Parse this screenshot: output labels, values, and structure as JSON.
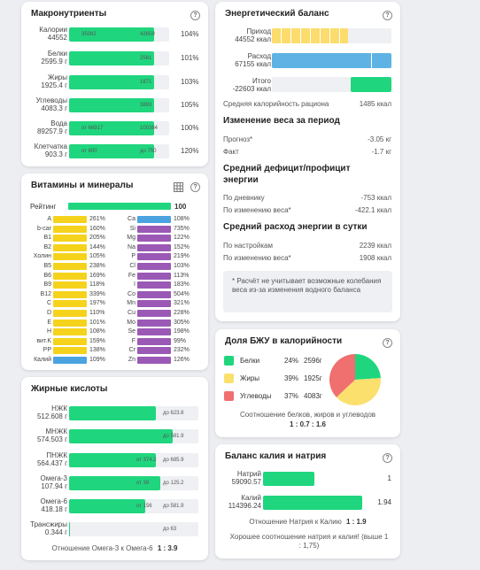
{
  "colors": {
    "green": "#1fd67e",
    "yellow": "#f5d31c",
    "blue": "#4ba3e0",
    "purple": "#9b59b6",
    "red": "#f06f6f",
    "pie_yellow": "#fbe06e"
  },
  "macro": {
    "title": "Макронутриенты",
    "help": "?",
    "rows": [
      {
        "name": "Калории",
        "value": "44552",
        "fill": 1.04,
        "in_left": "35082",
        "in_right": "42659",
        "pct": "104%"
      },
      {
        "name": "Белки",
        "value": "2595.9 г",
        "fill": 1.01,
        "in_left": "",
        "in_right": "2561",
        "pct": "101%"
      },
      {
        "name": "Жиры",
        "value": "1925.4 г",
        "fill": 1.03,
        "in_left": "",
        "in_right": "1871",
        "pct": "103%"
      },
      {
        "name": "Углеводы",
        "value": "4083.3 г",
        "fill": 1.05,
        "in_left": "",
        "in_right": "3893",
        "pct": "105%"
      },
      {
        "name": "Вода",
        "value": "89257.9 г",
        "fill": 1.0,
        "in_left": "от 66917",
        "in_right": "100384",
        "pct": "100%"
      },
      {
        "name": "Клетчатка",
        "value": "903.3 г",
        "fill": 1.2,
        "in_left": "от 600",
        "in_right": "до 750",
        "pct": "120%"
      }
    ]
  },
  "vitamins": {
    "title": "Витамины и минералы",
    "rating_label": "Рейтинг",
    "rating_value": "100",
    "left": [
      {
        "n": "A",
        "p": "261%",
        "c": "yellow"
      },
      {
        "n": "b-car",
        "p": "160%",
        "c": "yellow"
      },
      {
        "n": "B1",
        "p": "205%",
        "c": "yellow"
      },
      {
        "n": "B2",
        "p": "144%",
        "c": "yellow"
      },
      {
        "n": "Холин",
        "p": "105%",
        "c": "yellow"
      },
      {
        "n": "B5",
        "p": "238%",
        "c": "yellow"
      },
      {
        "n": "B6",
        "p": "169%",
        "c": "yellow"
      },
      {
        "n": "B9",
        "p": "118%",
        "c": "yellow"
      },
      {
        "n": "B12",
        "p": "339%",
        "c": "yellow"
      },
      {
        "n": "C",
        "p": "197%",
        "c": "yellow"
      },
      {
        "n": "D",
        "p": "110%",
        "c": "yellow"
      },
      {
        "n": "E",
        "p": "101%",
        "c": "yellow"
      },
      {
        "n": "H",
        "p": "108%",
        "c": "yellow"
      },
      {
        "n": "вит.K",
        "p": "159%",
        "c": "yellow"
      },
      {
        "n": "PP",
        "p": "138%",
        "c": "yellow"
      },
      {
        "n": "Калий",
        "p": "109%",
        "c": "blue"
      }
    ],
    "right": [
      {
        "n": "Ca",
        "p": "108%",
        "c": "blue"
      },
      {
        "n": "Si",
        "p": "735%",
        "c": "purple"
      },
      {
        "n": "Mg",
        "p": "122%",
        "c": "purple"
      },
      {
        "n": "Na",
        "p": "152%",
        "c": "purple"
      },
      {
        "n": "P",
        "p": "219%",
        "c": "purple"
      },
      {
        "n": "Cl",
        "p": "103%",
        "c": "purple"
      },
      {
        "n": "Fe",
        "p": "113%",
        "c": "purple"
      },
      {
        "n": "I",
        "p": "183%",
        "c": "purple"
      },
      {
        "n": "Co",
        "p": "504%",
        "c": "purple"
      },
      {
        "n": "Mn",
        "p": "321%",
        "c": "purple"
      },
      {
        "n": "Cu",
        "p": "228%",
        "c": "purple"
      },
      {
        "n": "Mo",
        "p": "305%",
        "c": "purple"
      },
      {
        "n": "Se",
        "p": "198%",
        "c": "purple"
      },
      {
        "n": "F",
        "p": "99%",
        "c": "purple"
      },
      {
        "n": "Cr",
        "p": "232%",
        "c": "purple"
      },
      {
        "n": "Zn",
        "p": "126%",
        "c": "purple"
      }
    ]
  },
  "fatty": {
    "title": "Жирные кислоты",
    "rows": [
      {
        "name": "НЖК",
        "value": "512.608 г",
        "fill": 0.82,
        "in_left": "",
        "in_right": "до 623.8"
      },
      {
        "name": "МНЖК",
        "value": "574.503 г",
        "fill": 0.98,
        "in_left": "",
        "in_right": "до 581.9"
      },
      {
        "name": "ПНЖК",
        "value": "564.437 г",
        "fill": 0.82,
        "in_left": "от 374.2",
        "in_right": "до 685.9"
      },
      {
        "name": "Омега-3",
        "value": "107.94 г",
        "fill": 0.86,
        "in_left": "от 39",
        "in_right": "до 125.2"
      },
      {
        "name": "Омега-6",
        "value": "418.18 г",
        "fill": 0.72,
        "in_left": "от 156",
        "in_right": "до 581.9"
      },
      {
        "name": "Трансжиры",
        "value": "0.344 г",
        "fill": 0.005,
        "in_left": "",
        "in_right": "до 63"
      }
    ],
    "ratio_label": "Отношение Омега-3 к Омега-6",
    "ratio_value": "1 : 3.9"
  },
  "energy": {
    "title": "Энергетический баланс",
    "rows": [
      {
        "name": "Приход",
        "value": "44552 ккал"
      },
      {
        "name": "Расход",
        "value": "67155 ккал"
      },
      {
        "name": "Итого",
        "value": "-22603 ккал"
      }
    ],
    "avg_label": "Средняя калорийность рациона",
    "avg_value": "1485 ккал",
    "weight_title": "Изменение веса за период",
    "forecast_label": "Прогноз*",
    "forecast_value": "-3.05 кг",
    "fact_label": "Факт",
    "fact_value": "-1.7 кг",
    "deficit_title": "Средний дефицит/профицит энергии",
    "diary_label": "По дневнику",
    "diary_value": "-753 ккал",
    "byweight_label": "По изменению веса*",
    "byweight_value": "-422.1 ккал",
    "spend_title": "Средний расход энергии в сутки",
    "settings_label": "По настройкам",
    "settings_value": "2239 ккал",
    "byweight2_label": "По изменению веса*",
    "byweight2_value": "1908 ккал",
    "note": "* Расчёт не учитывает возможные колебания веса из-за изменения водного баланса"
  },
  "bju": {
    "title": "Доля БЖУ в калорийности",
    "items": [
      {
        "name": "Белки",
        "pct": "24%",
        "grams": "2596г",
        "c": "green"
      },
      {
        "name": "Жиры",
        "pct": "39%",
        "grams": "1925г",
        "c": "pie_yellow"
      },
      {
        "name": "Углеводы",
        "pct": "37%",
        "grams": "4083г",
        "c": "red"
      }
    ],
    "ratio_label": "Соотношение белков, жиров и углеводов",
    "ratio_value": "1 : 0.7 : 1.6"
  },
  "kna": {
    "title": "Баланс калия и натрия",
    "rows": [
      {
        "name": "Натрий",
        "value": "59090.57",
        "fill": 0.52,
        "ratio": "1"
      },
      {
        "name": "Калий",
        "value": "114396.24",
        "fill": 1.0,
        "ratio": "1.94"
      }
    ],
    "ratio_label": "Отношение Натрия к Калию",
    "ratio_value": "1 : 1.9",
    "good_note": "Хорошее соотношение натрия и калия! (выше 1 : 1,75)"
  }
}
